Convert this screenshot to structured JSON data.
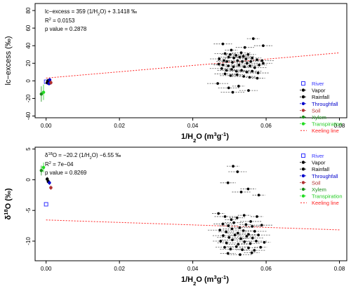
{
  "chart_data": [
    {
      "type": "scatter",
      "xlabel": "1/H2O (m3g-1)",
      "ylabel": "lc-excess (‰)",
      "xlim": [
        -0.003,
        0.082
      ],
      "ylim": [
        -42,
        88
      ],
      "x_ticks": [
        "0.00",
        "0.02",
        "0.04",
        "0.06",
        "0.08"
      ],
      "y_ticks": [
        "-40",
        "-20",
        "0",
        "20",
        "40",
        "60",
        "80"
      ],
      "annotations": [
        "lc−excess = 359 (1/H2O) + 3.1418 ‰",
        "R2 = 0.0153",
        "p value = 0.2878"
      ],
      "legend_position": "right",
      "series": [
        {
          "name": "River",
          "color": "#3333ff",
          "marker": "open-square",
          "points": [
            [
              0.0,
              -1
            ]
          ]
        },
        {
          "name": "Vapor",
          "color": "#000000",
          "marker": "filled-circle",
          "points": [
            [
              0.0565,
              48
            ],
            [
              0.0592,
              40
            ],
            [
              0.0482,
              42
            ],
            [
              0.0505,
              35
            ],
            [
              0.0542,
              38
            ],
            [
              0.0532,
              32
            ],
            [
              0.0488,
              31
            ],
            [
              0.0502,
              30
            ],
            [
              0.0518,
              29
            ],
            [
              0.0538,
              28
            ],
            [
              0.0551,
              30
            ],
            [
              0.0498,
              27
            ],
            [
              0.0512,
              26
            ],
            [
              0.0528,
              27
            ],
            [
              0.0545,
              25
            ],
            [
              0.0562,
              26
            ],
            [
              0.0575,
              24
            ],
            [
              0.0589,
              23
            ],
            [
              0.0472,
              25
            ],
            [
              0.0485,
              23
            ],
            [
              0.0493,
              22
            ],
            [
              0.0508,
              21
            ],
            [
              0.0522,
              23
            ],
            [
              0.0535,
              22
            ],
            [
              0.0548,
              20
            ],
            [
              0.0558,
              22
            ],
            [
              0.0471,
              19
            ],
            [
              0.0482,
              18
            ],
            [
              0.0497,
              17
            ],
            [
              0.0511,
              16
            ],
            [
              0.0526,
              18
            ],
            [
              0.0541,
              16
            ],
            [
              0.0556,
              17
            ],
            [
              0.0569,
              15
            ],
            [
              0.0581,
              18
            ],
            [
              0.0479,
              14
            ],
            [
              0.0492,
              12
            ],
            [
              0.0506,
              13
            ],
            [
              0.0519,
              11
            ],
            [
              0.0533,
              12
            ],
            [
              0.0547,
              10
            ],
            [
              0.0562,
              11
            ],
            [
              0.0578,
              9
            ],
            [
              0.0488,
              8
            ],
            [
              0.0503,
              6
            ],
            [
              0.0521,
              7
            ],
            [
              0.0539,
              5
            ],
            [
              0.0555,
              4
            ],
            [
              0.0576,
              3
            ],
            [
              0.0468,
              -3
            ],
            [
              0.0498,
              -8
            ],
            [
              0.0525,
              -6
            ],
            [
              0.0552,
              -11
            ],
            [
              0.0509,
              -13
            ],
            [
              0.0592,
              20
            ]
          ]
        },
        {
          "name": "Rainfall",
          "color": "#000000",
          "marker": "filled-circle",
          "points": [
            [
              0.0003,
              -2
            ],
            [
              0.0005,
              0
            ]
          ]
        },
        {
          "name": "Throughfall",
          "color": "#0000cc",
          "marker": "filled-circle",
          "points": [
            [
              0.0008,
              -3
            ],
            [
              0.001,
              1
            ]
          ]
        },
        {
          "name": "Soil",
          "color": "#b03030",
          "marker": "filled-circle",
          "points": [
            [
              0.0013,
              -2
            ]
          ]
        },
        {
          "name": "Xylem",
          "color": "#1a8c1a",
          "marker": "filled-circle",
          "points": [
            [
              -0.0013,
              -15
            ]
          ]
        },
        {
          "name": "Transpiration",
          "color": "#22dd22",
          "marker": "filled-circle",
          "points": [
            [
              -0.0007,
              -13
            ]
          ]
        },
        {
          "name": "Keeling line",
          "color": "#ff2222",
          "line_style": "dotted",
          "line": {
            "slope": 359,
            "intercept": 3.1418
          }
        }
      ]
    },
    {
      "type": "scatter",
      "xlabel": "1/H2O (m3g-1)",
      "ylabel": "δ18O (‰)",
      "xlim": [
        -0.003,
        0.082
      ],
      "ylim": [
        -13.2,
        5.3
      ],
      "x_ticks": [
        "0.00",
        "0.02",
        "0.04",
        "0.06",
        "0.08"
      ],
      "y_ticks": [
        "-10",
        "-5",
        "0",
        "5"
      ],
      "annotations": [
        "δ18O = −20.2 (1/H2O) −6.55 ‰",
        "R2 = 7e−04",
        "p value = 0.8269"
      ],
      "legend_position": "right",
      "series": [
        {
          "name": "River",
          "color": "#3333ff",
          "marker": "open-square",
          "points": [
            [
              0.0,
              -4.0
            ]
          ]
        },
        {
          "name": "Vapor",
          "color": "#000000",
          "marker": "filled-circle",
          "points": [
            [
              0.051,
              2.2
            ],
            [
              0.0522,
              1.3
            ],
            [
              0.0496,
              -0.5
            ],
            [
              0.0532,
              -2.0
            ],
            [
              0.0551,
              -1.5
            ],
            [
              0.058,
              -2.5
            ],
            [
              0.047,
              -5.5
            ],
            [
              0.0488,
              -6.0
            ],
            [
              0.0505,
              -6.5
            ],
            [
              0.0521,
              -6.2
            ],
            [
              0.054,
              -5.8
            ],
            [
              0.0558,
              -6.8
            ],
            [
              0.0575,
              -6.0
            ],
            [
              0.0482,
              -7.2
            ],
            [
              0.0497,
              -7.5
            ],
            [
              0.0512,
              -7.0
            ],
            [
              0.0528,
              -7.8
            ],
            [
              0.0545,
              -7.3
            ],
            [
              0.0562,
              -7.6
            ],
            [
              0.0588,
              -7.4
            ],
            [
              0.0474,
              -8.2
            ],
            [
              0.0491,
              -8.5
            ],
            [
              0.0507,
              -8.0
            ],
            [
              0.0523,
              -8.7
            ],
            [
              0.0538,
              -8.3
            ],
            [
              0.0552,
              -8.9
            ],
            [
              0.0569,
              -8.4
            ],
            [
              0.0483,
              -9.1
            ],
            [
              0.0499,
              -9.4
            ],
            [
              0.0515,
              -9.0
            ],
            [
              0.0531,
              -9.6
            ],
            [
              0.0547,
              -9.2
            ],
            [
              0.0563,
              -9.5
            ],
            [
              0.0579,
              -9.0
            ],
            [
              0.0476,
              -10.0
            ],
            [
              0.0492,
              -10.3
            ],
            [
              0.0508,
              -9.8
            ],
            [
              0.0524,
              -10.5
            ],
            [
              0.0541,
              -10.1
            ],
            [
              0.0557,
              -10.4
            ],
            [
              0.0573,
              -10.0
            ],
            [
              0.0595,
              -10.2
            ],
            [
              0.0487,
              -11.0
            ],
            [
              0.0503,
              -11.3
            ],
            [
              0.0519,
              -10.9
            ],
            [
              0.0535,
              -11.4
            ],
            [
              0.0552,
              -11.1
            ],
            [
              0.0568,
              -11.5
            ],
            [
              0.0585,
              -11.0
            ],
            [
              0.0496,
              -12.0
            ],
            [
              0.0529,
              -12.2
            ],
            [
              0.0561,
              -11.9
            ]
          ]
        },
        {
          "name": "Rainfall",
          "color": "#000000",
          "marker": "filled-circle",
          "points": [
            [
              0.0003,
              0.1
            ],
            [
              0.0006,
              -0.3
            ]
          ]
        },
        {
          "name": "Throughfall",
          "color": "#0000cc",
          "marker": "filled-circle",
          "points": [
            [
              0.0009,
              -0.5
            ]
          ]
        },
        {
          "name": "Soil",
          "color": "#b03030",
          "marker": "filled-circle",
          "points": [
            [
              0.0013,
              -1.3
            ]
          ]
        },
        {
          "name": "Xylem",
          "color": "#1a8c1a",
          "marker": "filled-circle",
          "points": [
            [
              -0.0013,
              1.5
            ]
          ]
        },
        {
          "name": "Transpiration",
          "color": "#22dd22",
          "marker": "filled-circle",
          "points": [
            [
              -0.0007,
              2.0
            ]
          ]
        },
        {
          "name": "Keeling line",
          "color": "#ff2222",
          "line_style": "dotted",
          "line": {
            "slope": -20.2,
            "intercept": -6.55
          }
        }
      ]
    }
  ]
}
